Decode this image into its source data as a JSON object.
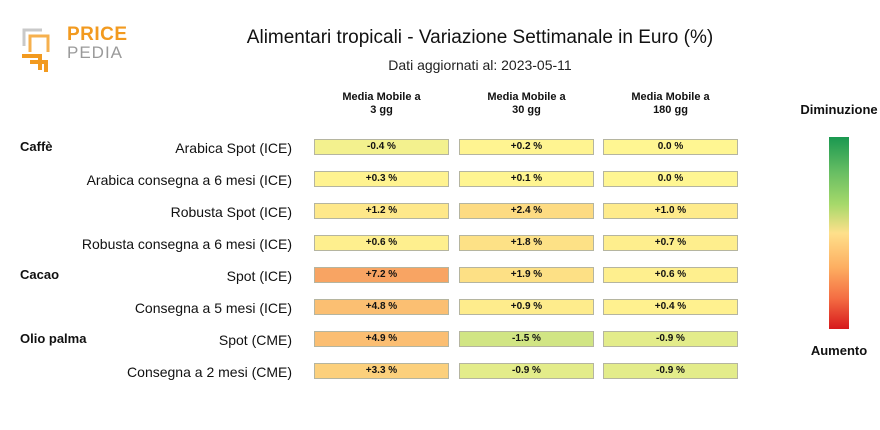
{
  "logo": {
    "line1": "PRICE",
    "line2": "PEDIA"
  },
  "title": "Alimentari tropicali - Variazione Settimanale in Euro (%)",
  "subtitle": "Dati aggiornati al: 2023-05-11",
  "legend": {
    "top": "Diminuzione",
    "bottom": "Aumento"
  },
  "chart_data": {
    "type": "heatmap",
    "columns": [
      "Media Mobile a\n3 gg",
      "Media Mobile a\n30 gg",
      "Media Mobile a\n180 gg"
    ],
    "rows": [
      {
        "group": "Caffè",
        "label": "Arabica Spot (ICE)",
        "values": [
          -0.4,
          0.2,
          0.0
        ],
        "texts": [
          "-0.4 %",
          "+0.2 %",
          "0.0 %"
        ]
      },
      {
        "group": "",
        "label": "Arabica consegna a 6 mesi (ICE)",
        "values": [
          0.3,
          0.1,
          0.0
        ],
        "texts": [
          "+0.3 %",
          "+0.1 %",
          "0.0 %"
        ]
      },
      {
        "group": "",
        "label": "Robusta Spot (ICE)",
        "values": [
          1.2,
          2.4,
          1.0
        ],
        "texts": [
          "+1.2 %",
          "+2.4 %",
          "+1.0 %"
        ]
      },
      {
        "group": "",
        "label": "Robusta consegna a 6 mesi (ICE)",
        "values": [
          0.6,
          1.8,
          0.7
        ],
        "texts": [
          "+0.6 %",
          "+1.8 %",
          "+0.7 %"
        ]
      },
      {
        "group": "Cacao",
        "label": "Spot (ICE)",
        "values": [
          7.2,
          1.9,
          0.6
        ],
        "texts": [
          "+7.2 %",
          "+1.9 %",
          "+0.6 %"
        ]
      },
      {
        "group": "",
        "label": "Consegna a 5 mesi (ICE)",
        "values": [
          4.8,
          0.9,
          0.4
        ],
        "texts": [
          "+4.8 %",
          "+0.9 %",
          "+0.4 %"
        ]
      },
      {
        "group": "Olio palma",
        "label": "Spot (CME)",
        "values": [
          4.9,
          -1.5,
          -0.9
        ],
        "texts": [
          "+4.9 %",
          "-1.5 %",
          "-0.9 %"
        ]
      },
      {
        "group": "",
        "label": "Consegna a 2 mesi (CME)",
        "values": [
          3.3,
          -0.9,
          -0.9
        ],
        "texts": [
          "+3.3 %",
          "-0.9 %",
          "-0.9 %"
        ]
      }
    ],
    "colors": {
      "high_decrease": "#1a9850",
      "neutral": "#fee08b",
      "high_increase": "#d7191c"
    }
  }
}
